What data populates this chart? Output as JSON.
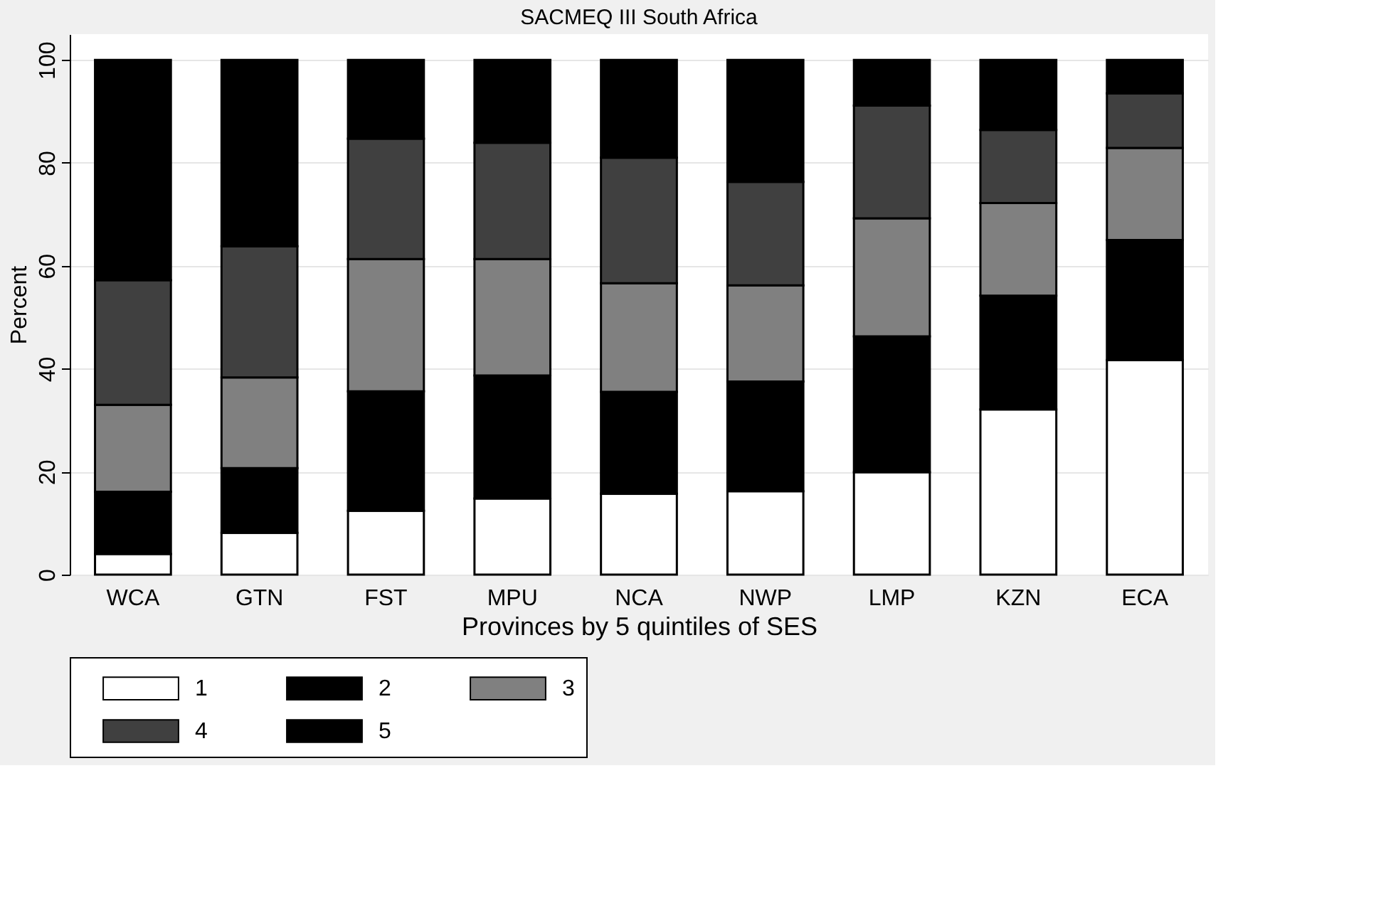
{
  "chart_data": {
    "type": "bar",
    "title": "SACMEQ III South Africa",
    "xlabel": "Provinces by 5 quintiles of SES",
    "ylabel": "Percent",
    "categories": [
      "WCA",
      "GTN",
      "FST",
      "MPU",
      "NCA",
      "NWP",
      "LMP",
      "KZN",
      "ECA"
    ],
    "stacked": true,
    "series": [
      {
        "name": "1",
        "color": "#ffffff",
        "values": [
          4.0,
          8.1,
          12.4,
          14.8,
          15.7,
          16.2,
          19.9,
          32.1,
          41.7
        ]
      },
      {
        "name": "2",
        "color": "#000000",
        "values": [
          12.1,
          12.6,
          23.2,
          23.9,
          19.8,
          21.3,
          26.4,
          22.1,
          23.3
        ]
      },
      {
        "name": "3",
        "color": "#808080",
        "values": [
          16.9,
          17.6,
          25.7,
          22.6,
          21.1,
          18.7,
          22.9,
          18.0,
          17.9
        ]
      },
      {
        "name": "4",
        "color": "#404040",
        "values": [
          24.2,
          25.5,
          23.4,
          22.6,
          24.4,
          20.1,
          21.9,
          14.2,
          10.6
        ]
      },
      {
        "name": "5",
        "color": "#000000",
        "values": [
          42.8,
          36.2,
          15.3,
          16.1,
          19.0,
          23.7,
          8.9,
          13.6,
          6.5
        ]
      }
    ],
    "ylim": [
      0,
      105
    ],
    "yticks": [
      0,
      20,
      40,
      60,
      80,
      100
    ],
    "grid": "y",
    "legend": "bottom"
  }
}
